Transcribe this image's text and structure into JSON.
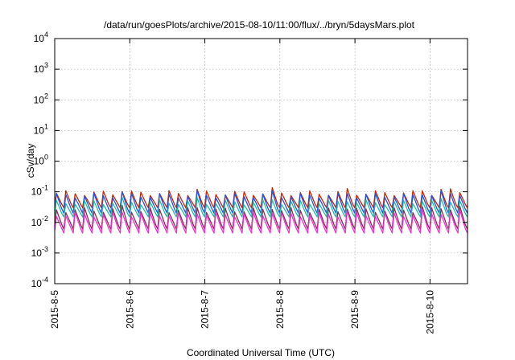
{
  "chart_data": {
    "type": "line",
    "title": "/data/run/goesPlots/archive/2015-08-10/11:00/flux/../bryn/5daysMars.plot",
    "xlabel": "Coordinated Universal Time (UTC)",
    "ylabel": "cSv/day",
    "yscale": "log",
    "ylim": [
      0.0001,
      10000
    ],
    "yticks": [
      {
        "base": "10",
        "exp": "-4"
      },
      {
        "base": "10",
        "exp": "-3"
      },
      {
        "base": "10",
        "exp": "-2"
      },
      {
        "base": "10",
        "exp": "-1"
      },
      {
        "base": "10",
        "exp": "0"
      },
      {
        "base": "10",
        "exp": "1"
      },
      {
        "base": "10",
        "exp": "2"
      },
      {
        "base": "10",
        "exp": "3"
      },
      {
        "base": "10",
        "exp": "4"
      }
    ],
    "xlim": [
      "2015-08-05T00:00",
      "2015-08-10T12:00"
    ],
    "xticks": [
      "2015-8-5",
      "2015-8-6",
      "2015-8-7",
      "2015-8-8",
      "2015-8-9",
      "2015-8-10"
    ],
    "grid": true,
    "legend": "none",
    "pattern_period_hours": 3,
    "series": [
      {
        "color": "#cc2200",
        "peak": 0.09,
        "trough": 0.03
      },
      {
        "color": "#2255dd",
        "peak": 0.075,
        "trough": 0.02
      },
      {
        "color": "#22bbaa",
        "peak": 0.045,
        "trough": 0.015
      },
      {
        "color": "#8a2a55",
        "peak": 0.025,
        "trough": 0.006
      },
      {
        "color": "#ee33cc",
        "peak": 0.018,
        "trough": 0.0045
      }
    ]
  }
}
